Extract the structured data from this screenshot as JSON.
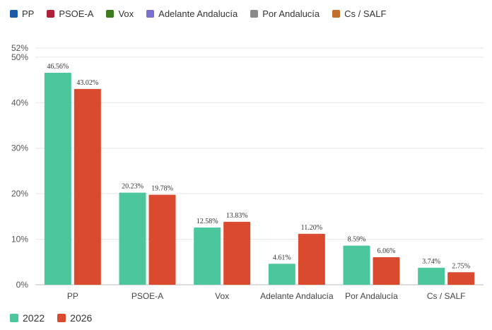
{
  "legend": {
    "parties": [
      {
        "name": "PP",
        "color": "#1f5aa6"
      },
      {
        "name": "PSOE-A",
        "color": "#b0213a"
      },
      {
        "name": "Vox",
        "color": "#3c7a1e"
      },
      {
        "name": "Adelante Andalucía",
        "color": "#7b6fd0"
      },
      {
        "name": "Por Andalucía",
        "color": "#8a8a8a"
      },
      {
        "name": "Cs / SALF",
        "color": "#c0702a"
      }
    ]
  },
  "chart_data": {
    "type": "bar",
    "categories": [
      "PP",
      "PSOE-A",
      "Vox",
      "Adelante Andalucía",
      "Por Andalucía",
      "Cs / SALF"
    ],
    "series": [
      {
        "name": "2022",
        "color": "#4cc79d",
        "values": [
          46.56,
          20.23,
          12.58,
          4.61,
          8.59,
          3.74
        ],
        "labels": [
          "46.56%",
          "20.23%",
          "12.58%",
          "4.61%",
          "8.59%",
          "3.74%"
        ]
      },
      {
        "name": "2026",
        "color": "#d94a2e",
        "values": [
          43.02,
          19.78,
          13.83,
          11.2,
          6.06,
          2.75
        ],
        "labels": [
          "43.02%",
          "19.78%",
          "13.83%",
          "11.20%",
          "6.06%",
          "2.75%"
        ]
      }
    ],
    "ylim": [
      0,
      52
    ],
    "yticks": [
      0,
      10,
      20,
      30,
      40,
      50,
      52
    ],
    "ytick_labels": [
      "0%",
      "10%",
      "20%",
      "30%",
      "40%",
      "50%",
      "52%"
    ],
    "grid": true,
    "legend_position": "bottom-left"
  }
}
